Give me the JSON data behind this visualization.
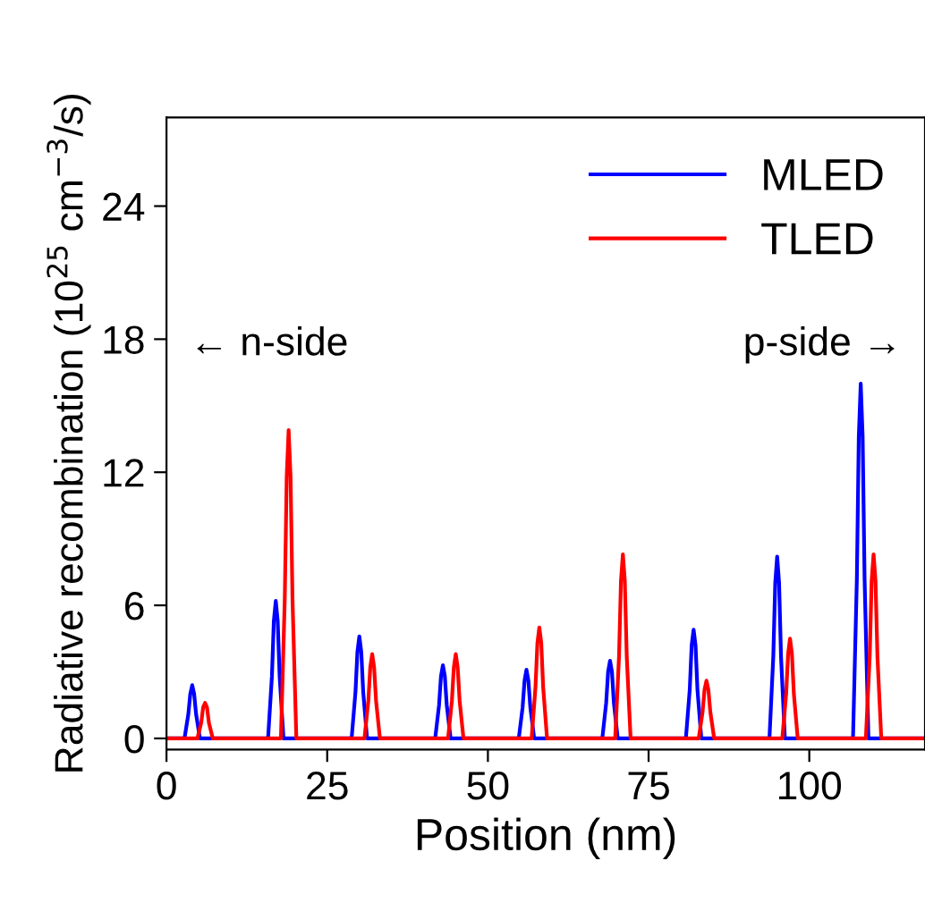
{
  "chart_data": {
    "type": "line",
    "xlabel": "Position (nm)",
    "ylabel": "Radiative recombination (10$^{25}$ cm$^{−3}$/s)",
    "xlim": [
      0,
      118
    ],
    "xticks": [
      0,
      25,
      50,
      75,
      100
    ],
    "ylim": [
      -0.5,
      28
    ],
    "yticks": [
      0,
      6,
      12,
      18,
      24
    ],
    "grid": false,
    "legend": "top right",
    "marker": "none",
    "line_style": "solid",
    "annotations": [
      "← n-side",
      "p-side →"
    ],
    "series": [
      {
        "name": "MLED",
        "color": "#0000ff",
        "x": [
          0,
          2.8,
          3.4,
          3.7,
          4,
          4.3,
          4.6,
          5.2,
          15.8,
          16.4,
          16.7,
          17,
          17.3,
          17.6,
          18.2,
          28.8,
          29.4,
          29.7,
          30,
          30.3,
          30.6,
          31.2,
          41.8,
          42.4,
          42.7,
          43,
          43.3,
          43.6,
          44.2,
          54.8,
          55.4,
          55.7,
          56,
          56.3,
          56.6,
          57.2,
          67.8,
          68.4,
          68.7,
          69,
          69.3,
          69.6,
          70.2,
          80.8,
          81.4,
          81.7,
          82,
          82.3,
          82.6,
          83.2,
          93.8,
          94.4,
          94.7,
          95,
          95.3,
          95.6,
          96.2,
          106.8,
          107.4,
          107.7,
          108,
          108.3,
          108.6,
          109.2,
          118
        ],
        "values": [
          0,
          0,
          1.1,
          2.0,
          2.4,
          2.0,
          1.1,
          0,
          0,
          2.8,
          5.3,
          6.2,
          5.3,
          2.8,
          0,
          0,
          2.1,
          3.9,
          4.6,
          3.9,
          2.1,
          0,
          0,
          1.5,
          2.8,
          3.3,
          2.8,
          1.5,
          0,
          0,
          1.4,
          2.6,
          3.1,
          2.6,
          1.4,
          0,
          0,
          1.6,
          3.0,
          3.5,
          3.0,
          1.6,
          0,
          0,
          2.2,
          4.2,
          4.9,
          4.2,
          2.2,
          0,
          0,
          3.7,
          7.0,
          8.2,
          7.0,
          3.7,
          0,
          0,
          7.2,
          13.6,
          16.0,
          13.6,
          7.2,
          0,
          0
        ]
      },
      {
        "name": "TLED",
        "color": "#ff0000",
        "x": [
          0,
          4.8,
          5.4,
          5.7,
          6,
          6.3,
          6.6,
          7.2,
          17.8,
          18.4,
          18.7,
          19,
          19.3,
          19.6,
          20.2,
          30.8,
          31.4,
          31.7,
          32,
          32.3,
          32.6,
          33.2,
          43.8,
          44.4,
          44.7,
          45,
          45.3,
          45.6,
          46.2,
          56.8,
          57.4,
          57.7,
          58,
          58.3,
          58.6,
          59.2,
          69.8,
          70.4,
          70.7,
          71,
          71.3,
          71.6,
          72.2,
          82.8,
          83.4,
          83.7,
          84,
          84.3,
          84.6,
          85.2,
          95.8,
          96.4,
          96.7,
          97,
          97.3,
          97.6,
          98.2,
          108.8,
          109.4,
          109.7,
          110,
          110.3,
          110.6,
          111.2,
          118
        ],
        "values": [
          0,
          0,
          0.7,
          1.4,
          1.6,
          1.4,
          0.7,
          0,
          0,
          6.3,
          11.8,
          13.9,
          11.8,
          6.3,
          0,
          0,
          1.7,
          3.2,
          3.8,
          3.2,
          1.7,
          0,
          0,
          1.7,
          3.2,
          3.8,
          3.2,
          1.7,
          0,
          0,
          2.3,
          4.3,
          5.0,
          4.3,
          2.3,
          0,
          0,
          3.7,
          7.1,
          8.3,
          7.1,
          3.7,
          0,
          0,
          1.2,
          2.2,
          2.6,
          2.2,
          1.2,
          0,
          0,
          2.0,
          3.8,
          4.5,
          3.8,
          2.0,
          0,
          0,
          3.7,
          7.1,
          8.3,
          7.1,
          3.7,
          0,
          0
        ]
      }
    ]
  }
}
